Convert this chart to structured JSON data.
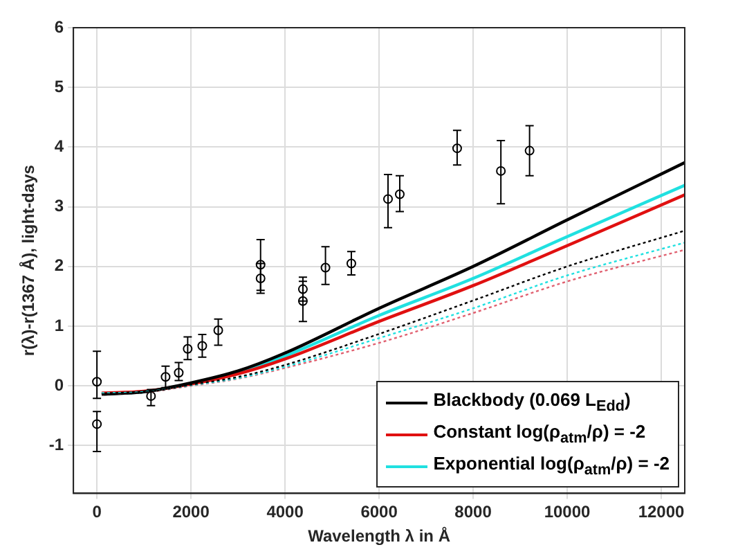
{
  "chart_data": {
    "type": "line",
    "xlabel": "Wavelength λ in Å",
    "ylabel": "r(λ)-r(1367 Å), light-days",
    "xlim": [
      -500,
      12500
    ],
    "xticks": [
      0,
      2000,
      4000,
      6000,
      8000,
      10000,
      12000
    ],
    "ylim": [
      -1.8,
      6
    ],
    "yticks": [
      -1,
      0,
      1,
      2,
      3,
      4,
      5,
      6
    ],
    "grid": true,
    "legend": "bottom right",
    "series": [
      {
        "name": "Blackbody (0.069 L$_{Edd}$)",
        "line_style": "solid",
        "color": "#000000",
        "x": [
          100,
          1000,
          2000,
          3000,
          4000,
          6000,
          8000,
          10000,
          12500
        ],
        "values": [
          -0.14,
          -0.1,
          0.05,
          0.25,
          0.55,
          1.3,
          2.0,
          2.78,
          3.74
        ]
      },
      {
        "name": "Constant log(ρ$_{atm}$/ρ) = -2",
        "line_style": "solid",
        "color": "#e01010",
        "x": [
          100,
          1000,
          2000,
          3000,
          4000,
          6000,
          8000,
          10000,
          12500
        ],
        "values": [
          -0.12,
          -0.09,
          0.03,
          0.2,
          0.45,
          1.08,
          1.68,
          2.35,
          3.2
        ]
      },
      {
        "name": "Exponential log(ρ$_{atm}$/ρ) = -2",
        "line_style": "solid",
        "color": "#20e0e0",
        "x": [
          100,
          1000,
          2000,
          3000,
          4000,
          6000,
          8000,
          10000,
          12500
        ],
        "values": [
          -0.13,
          -0.1,
          0.04,
          0.22,
          0.5,
          1.18,
          1.8,
          2.5,
          3.36
        ]
      },
      {
        "line_style": "dotted",
        "color": "#000000",
        "x": [
          100,
          1000,
          2000,
          3000,
          4000,
          6000,
          8000,
          10000,
          12500
        ],
        "values": [
          -0.14,
          -0.11,
          0.02,
          0.15,
          0.35,
          0.87,
          1.43,
          2.0,
          2.6
        ]
      },
      {
        "line_style": "dotted",
        "color": "#20e0e0",
        "x": [
          100,
          1000,
          2000,
          3000,
          4000,
          6000,
          8000,
          10000,
          12500
        ],
        "values": [
          -0.12,
          -0.1,
          0.01,
          0.13,
          0.32,
          0.8,
          1.3,
          1.85,
          2.4
        ]
      },
      {
        "line_style": "dotted",
        "color": "#e06070",
        "x": [
          100,
          1000,
          2000,
          3000,
          4000,
          6000,
          8000,
          10000,
          12500
        ],
        "values": [
          -0.14,
          -0.11,
          0.0,
          0.12,
          0.3,
          0.72,
          1.22,
          1.75,
          2.28
        ]
      },
      {
        "type": "scatter",
        "marker": "circle",
        "color": "#000000",
        "x": [
          0,
          0,
          1150,
          1460,
          1740,
          1930,
          2240,
          2580,
          3480,
          3480,
          4380,
          4380,
          4860,
          5410,
          6190,
          6440,
          7660,
          8590,
          9200
        ],
        "values": [
          0.07,
          -0.64,
          -0.17,
          0.15,
          0.22,
          0.62,
          0.67,
          0.93,
          2.03,
          1.8,
          1.62,
          1.42,
          1.98,
          2.05,
          3.13,
          3.21,
          3.98,
          3.6,
          3.94
        ],
        "errors": [
          [
            -0.21,
            0.58
          ],
          [
            -1.1,
            -0.43
          ],
          [
            -0.33,
            -0.06
          ],
          [
            -0.03,
            0.33
          ],
          [
            0.09,
            0.39
          ],
          [
            0.44,
            0.82
          ],
          [
            0.48,
            0.86
          ],
          [
            0.68,
            1.12
          ],
          [
            1.6,
            2.45
          ],
          [
            1.55,
            2.05
          ],
          [
            1.42,
            1.82
          ],
          [
            1.08,
            1.75
          ],
          [
            1.7,
            2.33
          ],
          [
            1.86,
            2.25
          ],
          [
            2.65,
            3.54
          ],
          [
            2.92,
            3.52
          ],
          [
            3.7,
            4.28
          ],
          [
            3.05,
            4.11
          ],
          [
            3.52,
            4.36
          ]
        ]
      }
    ]
  }
}
